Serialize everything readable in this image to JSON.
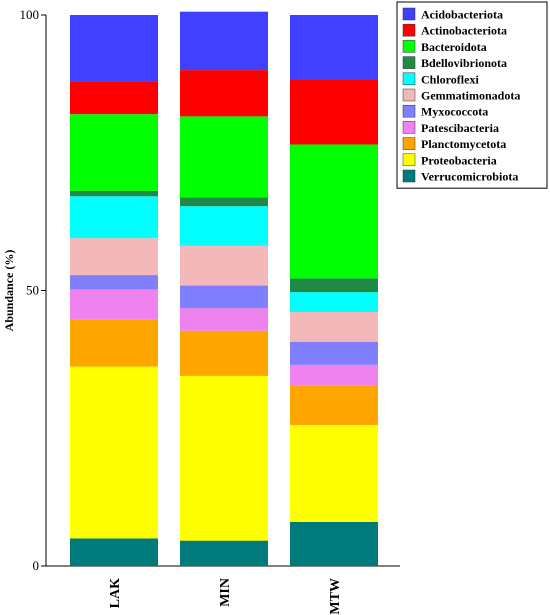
{
  "chart_data": {
    "type": "bar",
    "stacked": true,
    "ylabel": "Abundance (%)",
    "ylim": [
      0,
      100
    ],
    "yticks": [
      0,
      50,
      100
    ],
    "categories": [
      "LAK",
      "MIN",
      "MTW"
    ],
    "series": [
      {
        "name": "Verrucomicrobiota",
        "color": "#007b7b",
        "values": [
          5,
          4.6,
          8
        ]
      },
      {
        "name": "Proteobacteria",
        "color": "#ffff00",
        "values": [
          31.2,
          29.9,
          17.6
        ]
      },
      {
        "name": "Planctomycetota",
        "color": "#ffa500",
        "values": [
          8.6,
          8.2,
          7.2
        ]
      },
      {
        "name": "Patescibacteria",
        "color": "#ee82ee",
        "values": [
          5.4,
          4.1,
          3.7
        ]
      },
      {
        "name": "Myxococcota",
        "color": "#8080ff",
        "values": [
          2.6,
          4.1,
          4.2
        ]
      },
      {
        "name": "Gemmatimonadota",
        "color": "#f4b8b8",
        "values": [
          6.7,
          7.2,
          5.4
        ]
      },
      {
        "name": "Chloroflexi",
        "color": "#00ffff",
        "values": [
          7.6,
          7.2,
          3.6
        ]
      },
      {
        "name": "Bdellovibrionota",
        "color": "#1e8a46",
        "values": [
          1,
          1.6,
          2.5
        ]
      },
      {
        "name": "Bacteroidota",
        "color": "#00ff00",
        "values": [
          13.9,
          14.7,
          24.3
        ]
      },
      {
        "name": "Actinobacteriota",
        "color": "#ff0000",
        "values": [
          6,
          8.4,
          11.7
        ]
      },
      {
        "name": "Acidobacteriota",
        "color": "#4040ff",
        "values": [
          12,
          10.6,
          11.8
        ]
      }
    ],
    "legend": {
      "position": "top-right",
      "entries": [
        "Acidobacteriota",
        "Actinobacteriota",
        "Bacteroidota",
        "Bdellovibrionota",
        "Chloroflexi",
        "Gemmatimonadota",
        "Myxococcota",
        "Patescibacteria",
        "Planctomycetota",
        "Proteobacteria",
        "Verrucomicrobiota"
      ]
    },
    "grid": false
  }
}
